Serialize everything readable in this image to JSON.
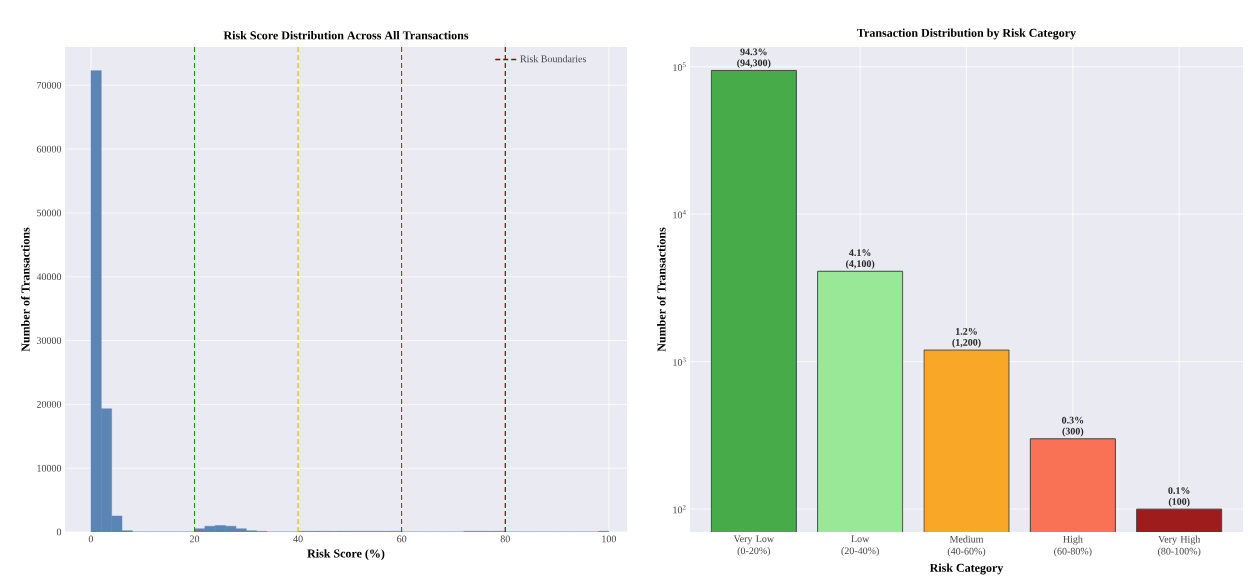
{
  "chart_data": [
    {
      "type": "histogram",
      "title": "Risk Score Distribution Across All Transactions",
      "xlabel": "Risk Score (%)",
      "ylabel": "Number of Transactions",
      "bins": [
        0,
        2,
        4,
        6,
        8,
        10,
        12,
        14,
        16,
        18,
        20,
        22,
        24,
        26,
        28,
        30,
        32,
        34,
        36,
        38,
        40,
        42,
        44,
        46,
        48,
        50,
        52,
        54,
        56,
        58,
        60,
        62,
        64,
        66,
        68,
        70,
        72,
        74,
        76,
        78,
        80,
        82,
        84,
        86,
        88,
        90,
        92,
        94,
        96,
        98,
        100
      ],
      "values": [
        72300,
        19300,
        2500,
        200,
        0,
        0,
        0,
        0,
        0,
        0,
        500,
        900,
        1000,
        900,
        500,
        200,
        100,
        0,
        0,
        0,
        100,
        100,
        100,
        100,
        100,
        100,
        100,
        100,
        100,
        100,
        0,
        0,
        0,
        0,
        0,
        0,
        100,
        100,
        100,
        100,
        0,
        0,
        0,
        0,
        0,
        0,
        0,
        0,
        0,
        100
      ],
      "color": "#5b85b5",
      "xlim": [
        -5,
        103.5
      ],
      "ylim": [
        0,
        76000
      ],
      "xticks": [
        0,
        20,
        40,
        60,
        80,
        100
      ],
      "yticks": [
        0,
        10000,
        20000,
        30000,
        40000,
        50000,
        60000,
        70000
      ],
      "grid": true,
      "legend": "top right",
      "ref_lines": [
        {
          "axis": "x",
          "value": 20,
          "color": "#228b22",
          "line_style": "dashed"
        },
        {
          "axis": "x",
          "value": 40,
          "color": "#ffa500",
          "line_style": "dashed"
        },
        {
          "axis": "x",
          "value": 60,
          "color": "#ff0000",
          "line_style": "dashed"
        },
        {
          "axis": "x",
          "value": 80,
          "color": "#8b0000",
          "line_style": "dashed",
          "label": "Risk Boundaries"
        }
      ]
    },
    {
      "type": "bar",
      "title": "Transaction Distribution by Risk Category",
      "xlabel": "Risk Category",
      "ylabel": "Number of Transactions",
      "log": "y",
      "categories": [
        "Very Low (0-20%)",
        "Low (20-40%)",
        "Medium (40-60%)",
        "High (60-80%)",
        "Very High (80-100%)"
      ],
      "values": [
        94300,
        4100,
        1200,
        300,
        100
      ],
      "colors": [
        "#46ab48",
        "#98e898",
        "#f8a826",
        "#fa7256",
        "#9e1c1c"
      ],
      "value_labels": [
        "94.3% (94,300)",
        "4.1% (4,100)",
        "1.2% (1,200)",
        "0.3% (300)",
        "0.1% (100)"
      ],
      "ylim": [
        70,
        136000
      ],
      "yticks": [
        {
          "value": 100,
          "label": "10$^{2}$"
        },
        {
          "value": 1000,
          "label": "10$^{3}$"
        },
        {
          "value": 10000,
          "label": "10$^{4}$"
        },
        {
          "value": 100000,
          "label": "10$^{5}$"
        }
      ],
      "grid": true
    }
  ]
}
